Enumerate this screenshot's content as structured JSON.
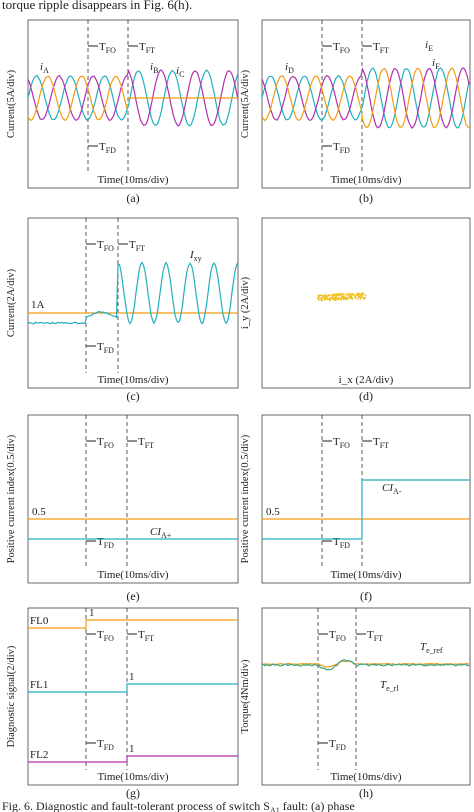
{
  "header": "torque ripple disappears in Fig. 6(h).",
  "panels": [
    {
      "caption": "(a)",
      "y_label": "Current(5A/div)",
      "x_label": "Time(10ms/div)",
      "markers": [
        {
          "text": "T",
          "sub": "FO"
        },
        {
          "text": "T",
          "sub": "FT"
        },
        {
          "text": "T",
          "sub": "FD"
        }
      ],
      "annotations": [
        {
          "text": "i",
          "sub": "A"
        },
        {
          "text": "i",
          "sub": "B"
        },
        {
          "text": "i",
          "sub": "C"
        }
      ]
    },
    {
      "caption": "(b)",
      "y_label": "Current(5A/div)",
      "x_label": "Time(10ms/div)",
      "markers": [
        {
          "text": "T",
          "sub": "FO"
        },
        {
          "text": "T",
          "sub": "FT"
        },
        {
          "text": "T",
          "sub": "FD"
        }
      ],
      "annotations": [
        {
          "text": "i",
          "sub": "D"
        },
        {
          "text": "i",
          "sub": "E"
        },
        {
          "text": "i",
          "sub": "F"
        }
      ]
    },
    {
      "caption": "(c)",
      "y_label": "Current(2A/div)",
      "x_label": "Time(10ms/div)",
      "markers": [
        {
          "text": "T",
          "sub": "FO"
        },
        {
          "text": "T",
          "sub": "FT"
        },
        {
          "text": "T",
          "sub": "FD"
        }
      ],
      "annotations": [
        {
          "text": "I",
          "sub": "xy"
        },
        {
          "text": "1A",
          "sub": ""
        }
      ]
    },
    {
      "caption": "(d)",
      "y_label": "i_y (2A/div)",
      "x_label": "i_x (2A/div)",
      "markers": [],
      "annotations": []
    },
    {
      "caption": "(e)",
      "y_label": "Positive current index(0.5/div)",
      "x_label": "Time(10ms/div)",
      "markers": [
        {
          "text": "T",
          "sub": "FO"
        },
        {
          "text": "T",
          "sub": "FT"
        },
        {
          "text": "T",
          "sub": "FD"
        }
      ],
      "annotations": [
        {
          "text": "CI",
          "sub": "A+"
        },
        {
          "text": "0.5",
          "sub": ""
        }
      ]
    },
    {
      "caption": "(f)",
      "y_label": "Positive current index(0.5/div)",
      "x_label": "Time(10ms/div)",
      "markers": [
        {
          "text": "T",
          "sub": "FO"
        },
        {
          "text": "T",
          "sub": "FT"
        },
        {
          "text": "T",
          "sub": "FD"
        }
      ],
      "annotations": [
        {
          "text": "CI",
          "sub": "A-"
        },
        {
          "text": "0.5",
          "sub": ""
        }
      ]
    },
    {
      "caption": "(g)",
      "y_label": "Diagnostic signal(2/div)",
      "x_label": "Time(10ms/div)",
      "markers": [
        {
          "text": "T",
          "sub": "FO"
        },
        {
          "text": "T",
          "sub": "FT"
        },
        {
          "text": "T",
          "sub": "FD"
        }
      ],
      "annotations": [
        {
          "text": "FL0",
          "sub": ""
        },
        {
          "text": "FL1",
          "sub": ""
        },
        {
          "text": "FL2",
          "sub": ""
        },
        {
          "text": "1",
          "sub": ""
        },
        {
          "text": "1",
          "sub": ""
        },
        {
          "text": "1",
          "sub": ""
        }
      ]
    },
    {
      "caption": "(h)",
      "y_label": "Torque(4Nm/div)",
      "x_label": "Time(10ms/div)",
      "markers": [
        {
          "text": "T",
          "sub": "FO"
        },
        {
          "text": "T",
          "sub": "FT"
        },
        {
          "text": "T",
          "sub": "FD"
        }
      ],
      "annotations": [
        {
          "text": "T",
          "sub": "e_ref"
        },
        {
          "text": "T",
          "sub": "e_rl"
        }
      ]
    }
  ],
  "caption": {
    "text": "Fig. 6. Diagnostic and fault-tolerant process of switch S",
    "sub": "A1",
    "rest": " fault: (a) phase"
  }
}
